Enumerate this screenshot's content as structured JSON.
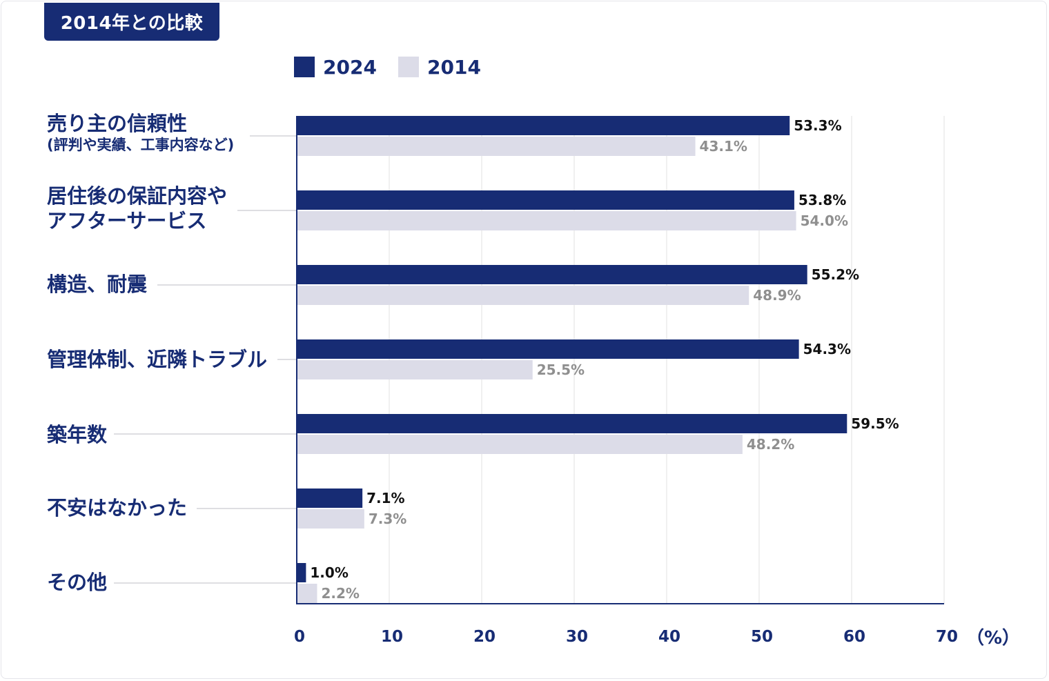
{
  "chart_data": {
    "type": "bar",
    "orientation": "horizontal",
    "title": "2014年との比較",
    "categories": [
      {
        "label": "売り主の信頼性",
        "sub": "(評判や実績、工事内容など)"
      },
      {
        "label": "居住後の保証内容や\nアフターサービス",
        "sub": ""
      },
      {
        "label": "構造、耐震",
        "sub": ""
      },
      {
        "label": "管理体制、近隣トラブル",
        "sub": ""
      },
      {
        "label": "築年数",
        "sub": ""
      },
      {
        "label": "不安はなかった",
        "sub": ""
      },
      {
        "label": "その他",
        "sub": ""
      }
    ],
    "series": [
      {
        "name": "2024",
        "color": "#172c74",
        "label_color": "#111111",
        "values": [
          53.3,
          53.8,
          55.2,
          54.3,
          59.5,
          7.1,
          1.0
        ],
        "value_labels": [
          "53.3%",
          "53.8%",
          "55.2%",
          "54.3%",
          "59.5%",
          "7.1%",
          "1.0%"
        ]
      },
      {
        "name": "2014",
        "color": "#dcdce8",
        "label_color": "#8f8f8f",
        "values": [
          43.1,
          54.0,
          48.9,
          25.5,
          48.2,
          7.3,
          2.2
        ],
        "value_labels": [
          "43.1%",
          "54.0%",
          "48.9%",
          "25.5%",
          "48.2%",
          "7.3%",
          "2.2%"
        ]
      }
    ],
    "xlim": [
      0,
      70
    ],
    "xticks": [
      "0",
      "10",
      "20",
      "30",
      "40",
      "50",
      "60",
      "70"
    ],
    "x_unit": "（%）",
    "grid": true,
    "legend_position": "top"
  },
  "colors": {
    "navy": "#172c74",
    "light": "#dcdce8",
    "grid": "#e2e2e2"
  }
}
